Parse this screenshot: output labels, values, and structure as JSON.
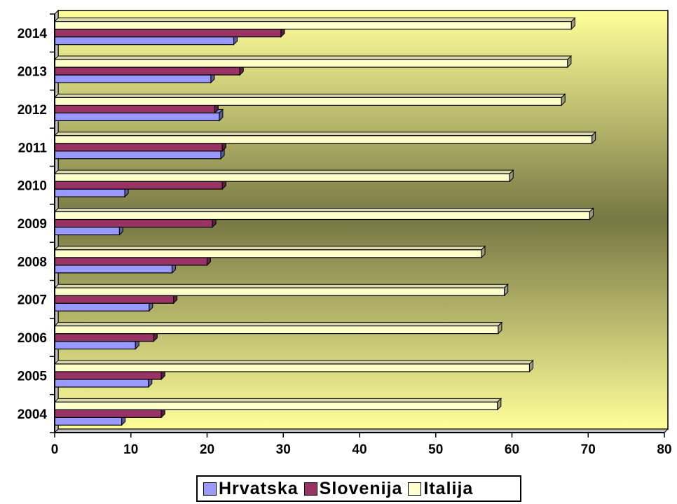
{
  "chart_data": {
    "type": "bar",
    "orientation": "horizontal",
    "categories": [
      "2004",
      "2005",
      "2006",
      "2007",
      "2008",
      "2009",
      "2010",
      "2011",
      "2012",
      "2013",
      "2014"
    ],
    "series": [
      {
        "name": "Hrvatska",
        "color": "#9999ff",
        "values": [
          8.8,
          12.3,
          10.6,
          12.4,
          15.4,
          8.5,
          9.2,
          21.8,
          21.6,
          20.5,
          23.5
        ]
      },
      {
        "name": "Slovenija",
        "color": "#993366",
        "values": [
          14.0,
          14.0,
          13.0,
          15.6,
          20.0,
          20.7,
          22.0,
          22.0,
          21.0,
          24.3,
          29.7
        ]
      },
      {
        "name": "Italija",
        "color": "#ffffcc",
        "values": [
          58.1,
          62.3,
          58.2,
          59.0,
          56.0,
          70.2,
          59.7,
          70.5,
          66.5,
          67.3,
          67.8
        ]
      }
    ],
    "xlim": [
      0,
      80
    ],
    "x_ticks": [
      "0",
      "10",
      "20",
      "30",
      "40",
      "50",
      "60",
      "70",
      "80"
    ],
    "legend_position": "bottom",
    "grid": false
  }
}
